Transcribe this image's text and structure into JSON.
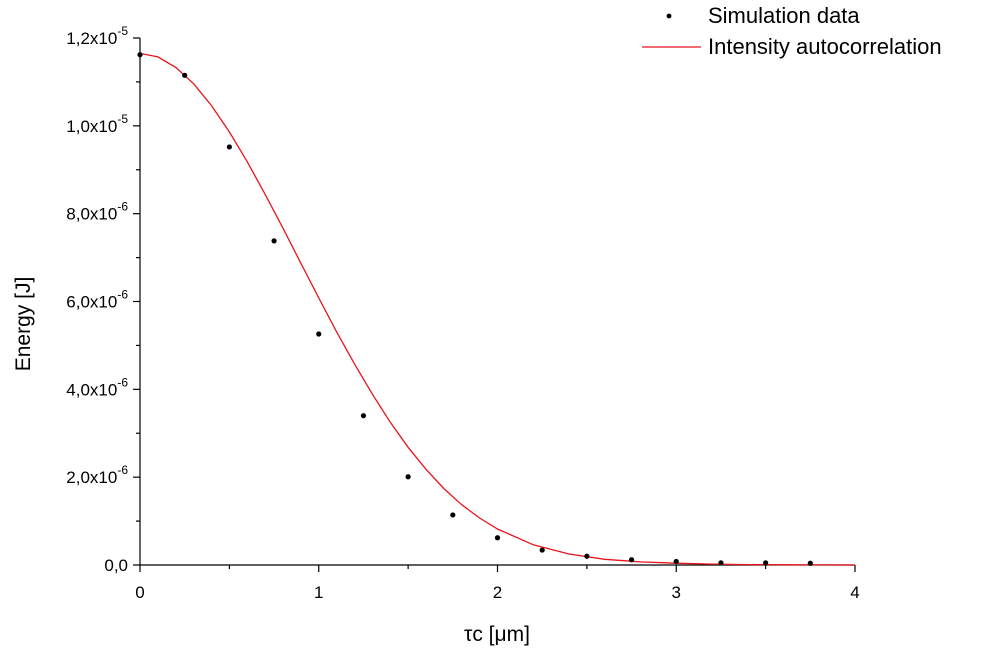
{
  "chart_data": {
    "type": "scatter",
    "title": "",
    "xlabel": "τc [μm]",
    "ylabel": "Energy [J]",
    "xlim": [
      0,
      4
    ],
    "ylim": [
      0,
      1.2e-05
    ],
    "x_ticks": [
      "0",
      "1",
      "2",
      "3",
      "4"
    ],
    "y_ticks": [
      {
        "mantissa": "0,0",
        "exp": ""
      },
      {
        "mantissa": "2,0x10",
        "exp": "-6"
      },
      {
        "mantissa": "4,0x10",
        "exp": "-6"
      },
      {
        "mantissa": "6,0x10",
        "exp": "-6"
      },
      {
        "mantissa": "8,0x10",
        "exp": "-6"
      },
      {
        "mantissa": "1,0x10",
        "exp": "-5"
      },
      {
        "mantissa": "1,2x10",
        "exp": "-5"
      }
    ],
    "legend_position": "top-right",
    "grid": false,
    "series": [
      {
        "name": "Simulation data",
        "kind": "scatter",
        "color": "#000000",
        "x": [
          0,
          0.25,
          0.5,
          0.75,
          1.0,
          1.25,
          1.5,
          1.75,
          2.0,
          2.25,
          2.5,
          2.75,
          3.0,
          3.25,
          3.5,
          3.75
        ],
        "y": [
          1.162e-05,
          1.115e-05,
          9.52e-06,
          7.38e-06,
          5.26e-06,
          3.4e-06,
          2.01e-06,
          1.14e-06,
          6.2e-07,
          3.4e-07,
          2e-07,
          1.2e-07,
          8e-08,
          5e-08,
          5e-08,
          4e-08
        ]
      },
      {
        "name": "Intensity autocorrelation",
        "kind": "line",
        "color": "#e8141b",
        "x": [
          0,
          0.1,
          0.2,
          0.3,
          0.4,
          0.5,
          0.6,
          0.7,
          0.8,
          0.9,
          1.0,
          1.1,
          1.2,
          1.3,
          1.4,
          1.5,
          1.6,
          1.7,
          1.8,
          1.9,
          2.0,
          2.2,
          2.4,
          2.6,
          2.8,
          3.0,
          3.2,
          3.4,
          3.6,
          3.8,
          4.0
        ],
        "y": [
          1.165e-05,
          1.157e-05,
          1.133e-05,
          1.096e-05,
          1.046e-05,
          9.86e-06,
          9.18e-06,
          8.44e-06,
          7.67e-06,
          6.87e-06,
          6.08e-06,
          5.31e-06,
          4.58e-06,
          3.89e-06,
          3.25e-06,
          2.68e-06,
          2.18e-06,
          1.74e-06,
          1.37e-06,
          1.07e-06,
          8.2e-07,
          4.6e-07,
          2.5e-07,
          1.3e-07,
          7e-08,
          4e-08,
          2e-08,
          1e-08,
          5e-09,
          2e-09,
          1e-09
        ]
      }
    ]
  }
}
